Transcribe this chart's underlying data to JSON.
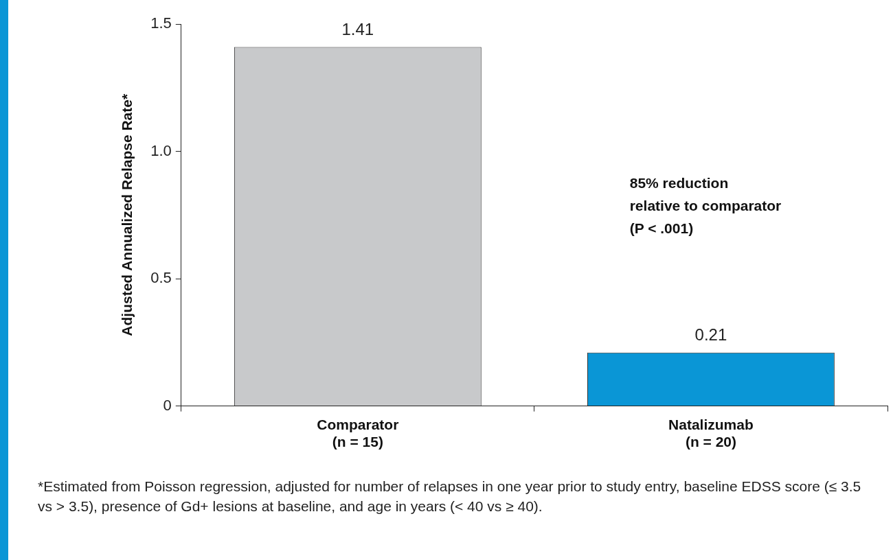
{
  "chart_data": {
    "type": "bar",
    "ylabel": "Adjusted Annualized Relapse Rate*",
    "categories": [
      "Comparator\n(n = 15)",
      "Natalizumab\n(n = 20)"
    ],
    "values": [
      1.41,
      0.21
    ],
    "colors": [
      "#c8c9cb",
      "#0a96d6"
    ],
    "ylim": [
      0,
      1.5
    ],
    "yticks": [
      0,
      0.5,
      {
        "value": 1,
        "label": "1.0"
      },
      1.5
    ],
    "grid": false,
    "data_labels": true,
    "annotations": [
      "85% reduction\nrelative to comparator\n(P < .001)",
      "*Estimated from Poisson regression, adjusted for number of relapses in one year prior to study entry, baseline EDSS score (≤ 3.5 vs > 3.5), presence of Gd+ lesions at baseline, and age in years (< 40 vs ≥ 40)."
    ]
  }
}
